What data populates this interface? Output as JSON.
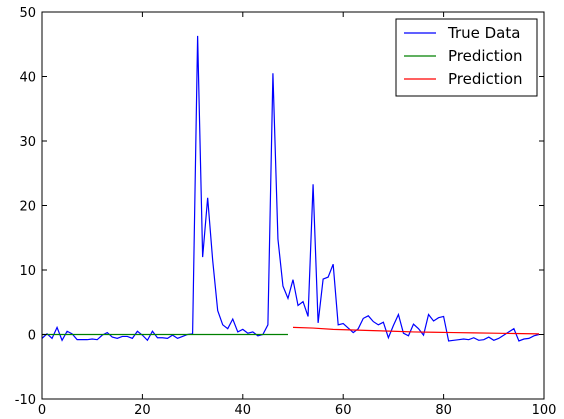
{
  "chart_data": {
    "type": "line",
    "xlim": [
      0,
      100
    ],
    "ylim": [
      -10,
      50
    ],
    "x_ticks": [
      0,
      20,
      40,
      60,
      80,
      100
    ],
    "y_ticks": [
      -10,
      0,
      10,
      20,
      30,
      40,
      50
    ],
    "grid": false,
    "legend_position": "top-right",
    "series": [
      {
        "name": "True Data",
        "color": "#0000ff",
        "x": [
          0,
          1,
          2,
          3,
          4,
          5,
          6,
          7,
          8,
          9,
          10,
          11,
          12,
          13,
          14,
          15,
          16,
          17,
          18,
          19,
          20,
          21,
          22,
          23,
          24,
          25,
          26,
          27,
          28,
          29,
          30,
          31,
          32,
          33,
          34,
          35,
          36,
          37,
          38,
          39,
          40,
          41,
          42,
          43,
          44,
          45,
          46,
          47,
          48,
          49,
          50,
          51,
          52,
          53,
          54,
          55,
          56,
          57,
          58,
          59,
          60,
          61,
          62,
          63,
          64,
          65,
          66,
          67,
          68,
          69,
          70,
          71,
          72,
          73,
          74,
          75,
          76,
          77,
          78,
          79,
          80,
          81,
          82,
          83,
          84,
          85,
          86,
          87,
          88,
          89,
          90,
          91,
          92,
          93,
          94,
          95,
          96,
          97,
          98,
          99
        ],
        "y": [
          -0.6,
          0.1,
          -0.6,
          1.1,
          -0.9,
          0.5,
          0.1,
          -0.8,
          -0.8,
          -0.8,
          -0.7,
          -0.8,
          -0.1,
          0.3,
          -0.4,
          -0.6,
          -0.3,
          -0.3,
          -0.6,
          0.5,
          -0.1,
          -0.9,
          0.5,
          -0.5,
          -0.5,
          -0.6,
          -0.1,
          -0.6,
          -0.3,
          0.0,
          0.1,
          46.3,
          12.0,
          21.2,
          11.5,
          3.7,
          1.5,
          0.9,
          2.4,
          0.4,
          0.8,
          0.2,
          0.4,
          -0.2,
          0.0,
          1.5,
          40.5,
          14.8,
          7.5,
          5.6,
          8.5,
          4.5,
          5.1,
          2.8,
          23.3,
          1.8,
          8.6,
          8.9,
          10.9,
          1.5,
          1.7,
          1.0,
          0.3,
          0.9,
          2.5,
          2.9,
          2.0,
          1.5,
          1.9,
          -0.5,
          1.4,
          3.1,
          0.2,
          -0.2,
          1.6,
          0.9,
          -0.1,
          3.1,
          2.1,
          2.6,
          2.8,
          -1.0,
          -0.9,
          -0.8,
          -0.7,
          -0.8,
          -0.5,
          -0.9,
          -0.8,
          -0.4,
          -0.9,
          -0.6,
          -0.1,
          0.4,
          0.9,
          -1.0,
          -0.7,
          -0.6,
          -0.2,
          0.0
        ]
      },
      {
        "name": "Prediction",
        "color": "#008000",
        "x": [
          0,
          49
        ],
        "y": [
          0.0,
          0.0
        ]
      },
      {
        "name": "Prediction",
        "color": "#ff0000",
        "x": [
          50,
          54,
          58,
          62,
          66,
          70,
          74,
          78,
          82,
          86,
          90,
          94,
          99
        ],
        "y": [
          1.1,
          1.0,
          0.8,
          0.7,
          0.6,
          0.5,
          0.4,
          0.35,
          0.3,
          0.25,
          0.2,
          0.15,
          0.1
        ]
      }
    ]
  }
}
